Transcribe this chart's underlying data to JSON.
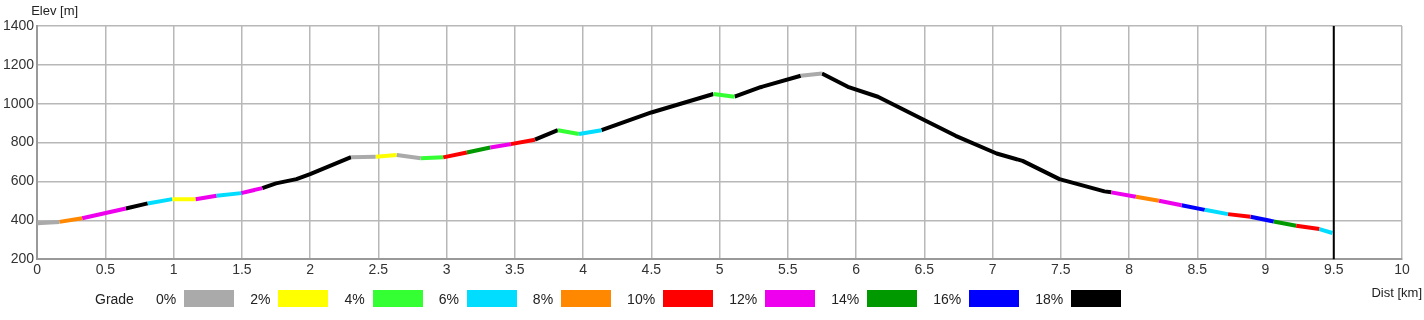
{
  "chart_data": {
    "type": "line",
    "xlabel": "Dist [km]",
    "ylabel": "Elev [m]",
    "legend_title": "Grade",
    "legend": "bottom",
    "grid": true,
    "marker": "none",
    "line_style": "solid",
    "xlim": [
      0,
      10
    ],
    "xticks": [
      0,
      0.5,
      1,
      1.5,
      2,
      2.5,
      3,
      3.5,
      4,
      4.5,
      5,
      5.5,
      6,
      6.5,
      7,
      7.5,
      8,
      8.5,
      9,
      9.5,
      10
    ],
    "ylim": [
      200,
      1400
    ],
    "yticks": [
      200,
      400,
      600,
      800,
      1000,
      1200,
      1400
    ],
    "ref_lines": [
      {
        "axis": "x",
        "value": 9.5,
        "color": "#000000"
      }
    ],
    "series": [
      {
        "name": "0%",
        "color": "#aaaaaa",
        "x": [
          0,
          0.163,
          1,
          2.3,
          2.48,
          2.55,
          2.635,
          2.81,
          4,
          5.595,
          5.75
        ],
        "values": [
          385,
          392,
          null,
          725,
          727,
          null,
          736,
          719,
          null,
          1144,
          1156
        ]
      },
      {
        "name": "2%",
        "color": "#ffff00",
        "x": [
          0.99,
          1.16,
          2,
          2.48,
          2.635
        ],
        "values": [
          509,
          509,
          null,
          727,
          736
        ]
      },
      {
        "name": "4%",
        "color": "#33ff33",
        "x": [
          2.81,
          2.975,
          3.5,
          3.815,
          3.97,
          4.5,
          4.955,
          5.11
        ],
        "values": [
          719,
          724,
          null,
          864,
          844,
          null,
          1050,
          1036
        ]
      },
      {
        "name": "6%",
        "color": "#00ddff",
        "x": [
          0.81,
          0.99,
          1.1,
          1.315,
          1.495,
          3,
          3.97,
          4.135,
          6,
          8.555,
          8.725,
          9,
          9.395,
          9.49
        ],
        "values": [
          487,
          509,
          null,
          526,
          540,
          null,
          844,
          864,
          null,
          454,
          432,
          null,
          355,
          335
        ]
      },
      {
        "name": "8%",
        "color": "#ff8800",
        "x": [
          0.163,
          0.33,
          4,
          8.05,
          8.22
        ],
        "values": [
          392,
          411,
          null,
          521,
          501
        ]
      },
      {
        "name": "10%",
        "color": "#ff0000",
        "x": [
          2.975,
          3.148,
          3.3,
          3.47,
          3.647,
          6,
          8.725,
          8.89,
          9,
          9.225,
          9.395
        ],
        "values": [
          724,
          749,
          null,
          792,
          815,
          null,
          432,
          418,
          null,
          372,
          355
        ]
      },
      {
        "name": "12%",
        "color": "#ee00ee",
        "x": [
          0.33,
          0.65,
          0.9,
          1.16,
          1.315,
          1.4,
          1.495,
          1.65,
          2.5,
          3.32,
          3.47,
          6,
          7.87,
          8.05,
          8.1,
          8.22,
          8.385
        ],
        "values": [
          411,
          461,
          null,
          509,
          526,
          null,
          540,
          566,
          null,
          775,
          792,
          null,
          544,
          521,
          null,
          501,
          478
        ]
      },
      {
        "name": "14%",
        "color": "#009900",
        "x": [
          3.148,
          3.32,
          6,
          9.06,
          9.225
        ],
        "values": [
          749,
          775,
          null,
          394,
          372
        ]
      },
      {
        "name": "16%",
        "color": "#0000ff",
        "x": [
          8.385,
          8.555,
          8.7,
          8.89,
          9.06
        ],
        "values": [
          478,
          454,
          null,
          418,
          394
        ]
      },
      {
        "name": "18%",
        "color": "#000000",
        "x": [
          0.65,
          0.81,
          1.2,
          1.65,
          1.75,
          1.9,
          2,
          2.3,
          3,
          3.647,
          3.815,
          4,
          4.135,
          4.5,
          4.955,
          5,
          5.11,
          5.3,
          5.595,
          5.7,
          5.75,
          5.94,
          6.16,
          6.51,
          6.73,
          7.03,
          7.22,
          7.49,
          7.82,
          7.87
        ],
        "values": [
          461,
          487,
          null,
          566,
          590,
          612,
          638,
          725,
          null,
          815,
          864,
          null,
          864,
          955,
          1050,
          null,
          1036,
          1085,
          1144,
          null,
          1156,
          1087,
          1036,
          912,
          835,
          744,
          706,
          612,
          549,
          544
        ]
      }
    ]
  }
}
